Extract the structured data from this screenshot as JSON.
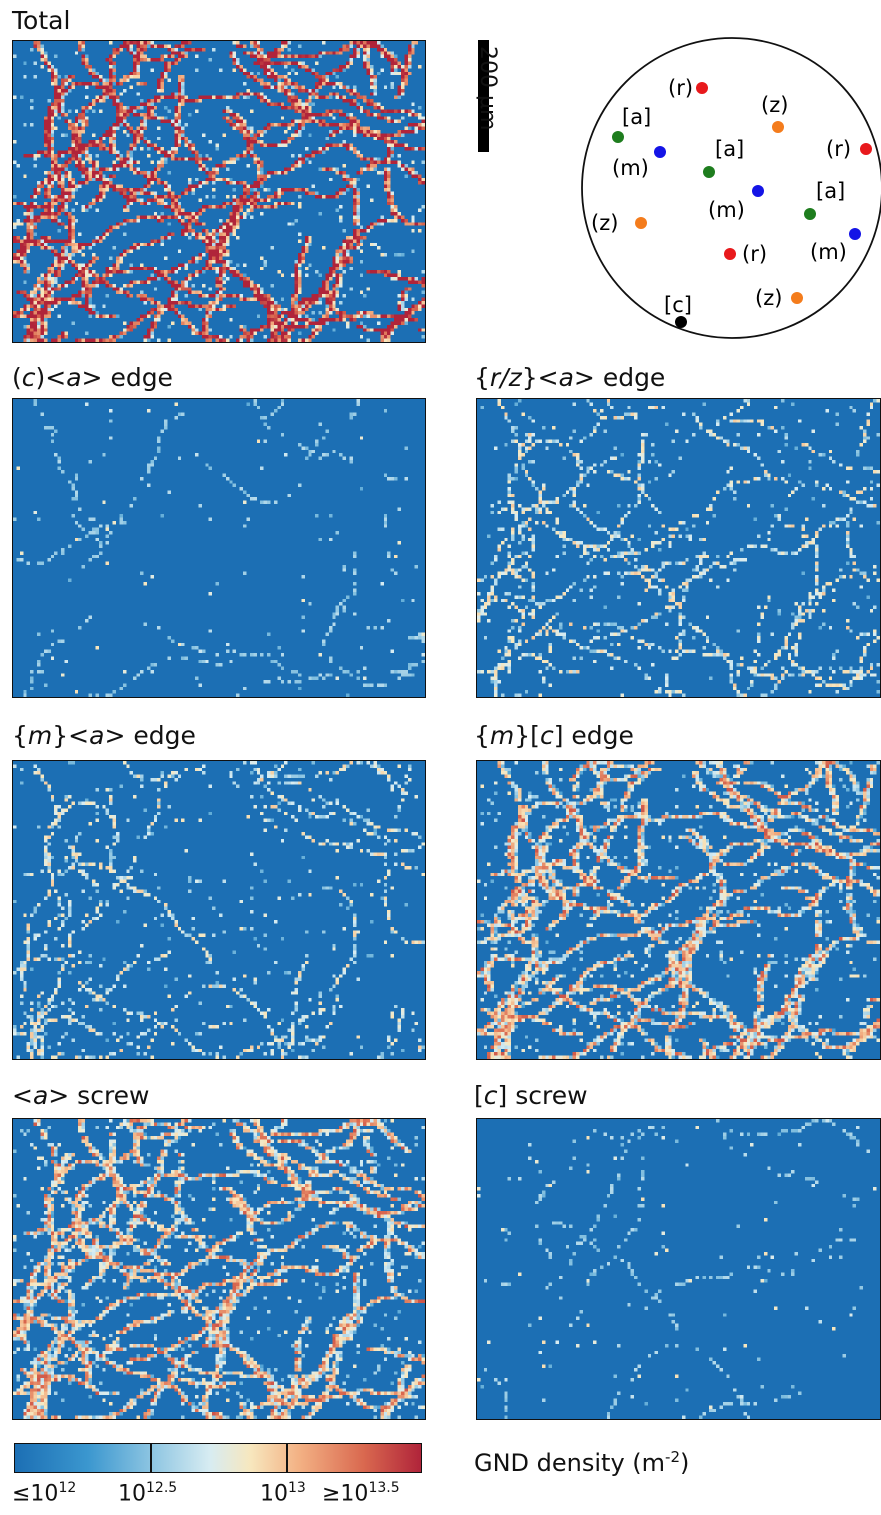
{
  "panels": {
    "total": {
      "title": "Total",
      "mode": "total"
    },
    "c_a_edge": {
      "title_pre": "(",
      "title_it": "c",
      "title_post": ")<",
      "title_it2": "a",
      "title_end": "> edge",
      "mode": "sparse"
    },
    "rz_a_edge": {
      "title_pre": "{",
      "title_it": "r/z",
      "title_post": "}<",
      "title_it2": "a",
      "title_end": "> edge",
      "mode": "medium"
    },
    "m_a_edge": {
      "title_pre": "{",
      "title_it": "m",
      "title_post": "}<",
      "title_it2": "a",
      "title_end": "> edge",
      "mode": "medium"
    },
    "m_c_edge": {
      "title_pre": "{",
      "title_it": "m",
      "title_post": "}[",
      "title_it2": "c",
      "title_end": "] edge",
      "mode": "dense"
    },
    "a_screw": {
      "title_pre": "<",
      "title_it": "a",
      "title_post": "> screw",
      "mode": "dense"
    },
    "c_screw": {
      "title_pre": "[",
      "title_it": "c",
      "title_post": "] screw",
      "mode": "sparse"
    }
  },
  "scale_bar": {
    "label": "200 μm"
  },
  "pole_figure": {
    "labels": [
      "(r)",
      "(z)",
      "[a]",
      "(r)",
      "(m)",
      "[a]",
      "(m)",
      "[a]",
      "(z)",
      "(r)",
      "(m)",
      "[c]",
      "(z)"
    ],
    "colors": {
      "r": "#e8191c",
      "z": "#f47c1c",
      "a": "#1e7d1e",
      "m": "#1414e6",
      "c": "#000000"
    }
  },
  "colorbar": {
    "labels": [
      "≤10",
      "10",
      "10",
      "≥10"
    ],
    "exponents": [
      "12",
      "12.5",
      "13",
      "13.5"
    ],
    "title": "GND density (m",
    "title_exp": "-2",
    "title_end": ")"
  }
}
